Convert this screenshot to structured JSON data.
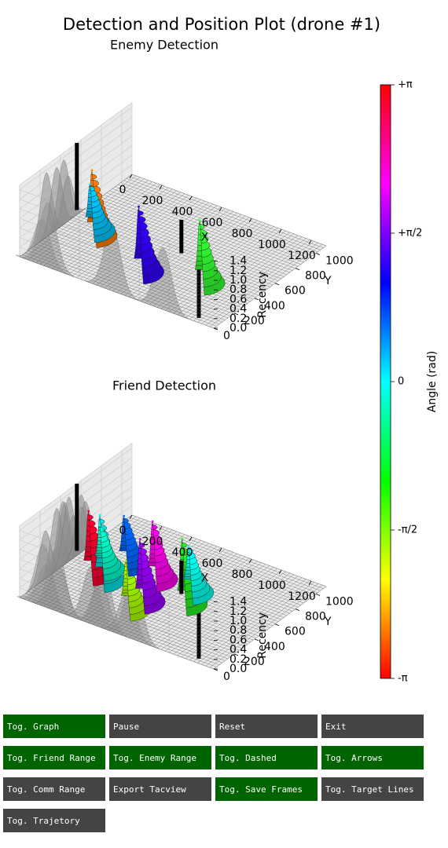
{
  "figure": {
    "title": "Detection and Position Plot (drone #1)"
  },
  "chart_data": [
    {
      "type": "surface3d",
      "title": "Enemy Detection",
      "xlabel": "X",
      "ylabel": "Y",
      "zlabel": "Recency",
      "xlim": [
        0,
        1300
      ],
      "ylim": [
        0,
        1100
      ],
      "zlim": [
        0,
        1.5
      ],
      "x_ticks": [
        "0",
        "200",
        "400",
        "600",
        "800",
        "1000",
        "1200"
      ],
      "y_ticks": [
        "0",
        "200",
        "400",
        "600",
        "800",
        "1000"
      ],
      "z_ticks": [
        "0.0",
        "0.2",
        "0.4",
        "0.6",
        "0.8",
        "1.0",
        "1.2",
        "1.4"
      ],
      "grid": true,
      "peaks": [
        {
          "x": 190,
          "y": 430,
          "height": 1.35,
          "angle": 2.7,
          "color": "#ff7a00"
        },
        {
          "x": 150,
          "y": 470,
          "height": 0.95,
          "angle": 0.2,
          "color": "#00c8ff"
        },
        {
          "x": 620,
          "y": 260,
          "height": 1.35,
          "angle": 1.7,
          "color": "#3300ff"
        },
        {
          "x": 960,
          "y": 360,
          "height": 1.3,
          "angle": -1.2,
          "color": "#33ff33"
        }
      ],
      "markers": [
        {
          "x": 120,
          "y": 560,
          "z_top": 1.5
        },
        {
          "x": 700,
          "y": 560,
          "z_top": 0.7
        },
        {
          "x": 1200,
          "y": 160,
          "z_top": 1.4
        }
      ]
    },
    {
      "type": "surface3d",
      "title": "Friend Detection",
      "xlabel": "X",
      "ylabel": "Y",
      "zlabel": "Recency",
      "xlim": [
        0,
        1300
      ],
      "ylim": [
        0,
        1100
      ],
      "zlim": [
        0,
        1.5
      ],
      "x_ticks": [
        "0",
        "200",
        "400",
        "600",
        "800",
        "1000",
        "1200"
      ],
      "y_ticks": [
        "0",
        "200",
        "400",
        "600",
        "800",
        "1000"
      ],
      "z_ticks": [
        "0.0",
        "0.2",
        "0.4",
        "0.6",
        "0.8",
        "1.0",
        "1.2",
        "1.4"
      ],
      "grid": true,
      "peaks": [
        {
          "x": 160,
          "y": 440,
          "height": 1.3,
          "angle": 2.9,
          "color": "#ff0030"
        },
        {
          "x": 250,
          "y": 420,
          "height": 1.35,
          "angle": 0.1,
          "color": "#00e0e0"
        },
        {
          "x": 180,
          "y": 520,
          "height": 0.9,
          "angle": -0.3,
          "color": "#00ffcc"
        },
        {
          "x": 260,
          "y": 640,
          "height": 1.0,
          "angle": 0.6,
          "color": "#0066ff"
        },
        {
          "x": 480,
          "y": 600,
          "height": 1.2,
          "angle": 2.3,
          "color": "#ff00ee"
        },
        {
          "x": 560,
          "y": 360,
          "height": 1.3,
          "angle": 1.8,
          "color": "#9900ff"
        },
        {
          "x": 540,
          "y": 250,
          "height": 1.0,
          "angle": -1.7,
          "color": "#aaff00"
        },
        {
          "x": 760,
          "y": 480,
          "height": 1.35,
          "angle": -0.9,
          "color": "#22ee22"
        },
        {
          "x": 720,
          "y": 600,
          "height": 0.95,
          "angle": 0.3,
          "color": "#00ffee"
        }
      ],
      "markers": [
        {
          "x": 120,
          "y": 560,
          "z_top": 1.5
        },
        {
          "x": 700,
          "y": 560,
          "z_top": 0.7
        },
        {
          "x": 1200,
          "y": 160,
          "z_top": 1.4
        }
      ]
    }
  ],
  "colorbar": {
    "label": "Angle (rad)",
    "ticks": [
      "+π",
      "+π/2",
      "0",
      "-π/2",
      "-π"
    ],
    "range": [
      -3.1416,
      3.1416
    ],
    "colormap": "hsv"
  },
  "buttons": [
    {
      "label": "Tog. Graph",
      "active": true
    },
    {
      "label": "Pause",
      "active": false
    },
    {
      "label": "Reset",
      "active": false
    },
    {
      "label": "Exit",
      "active": false
    },
    {
      "label": "Tog. Friend Range",
      "active": true
    },
    {
      "label": "Tog. Enemy Range",
      "active": true
    },
    {
      "label": "Tog. Dashed",
      "active": true
    },
    {
      "label": "Tog. Arrows",
      "active": true
    },
    {
      "label": "Tog. Comm Range",
      "active": false
    },
    {
      "label": "Export Tacview",
      "active": false
    },
    {
      "label": "Tog. Save Frames",
      "active": true
    },
    {
      "label": "Tog. Target Lines",
      "active": false
    },
    {
      "label": "Tog. Trajetory",
      "active": false
    }
  ]
}
